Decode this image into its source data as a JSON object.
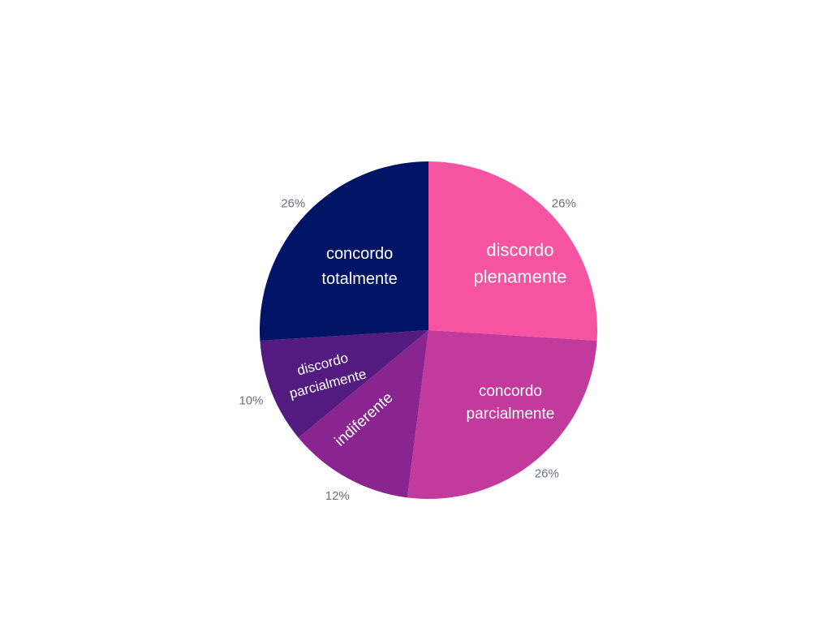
{
  "chart_data": {
    "type": "pie",
    "title": "",
    "start": "12 o'clock",
    "direction": "clockwise",
    "slices": [
      {
        "label": "discordo plenamente",
        "lines": [
          "discordo",
          "plenamente"
        ],
        "value": 26,
        "pct_text": "26%",
        "color": "#f654a3"
      },
      {
        "label": "concordo parcialmente",
        "lines": [
          "concordo",
          "parcialmente"
        ],
        "value": 26,
        "pct_text": "26%",
        "color": "#c13a9c"
      },
      {
        "label": "indiferente",
        "lines": [
          "indiferente"
        ],
        "value": 12,
        "pct_text": "12%",
        "color": "#8a2490"
      },
      {
        "label": "discordo parcialmente",
        "lines": [
          "discordo",
          "parcialmente"
        ],
        "value": 10,
        "pct_text": "10%",
        "color": "#531a80"
      },
      {
        "label": "concordo totalmente",
        "lines": [
          "concordo",
          "totalmente"
        ],
        "value": 26,
        "pct_text": "26%",
        "color": "#001466"
      }
    ]
  }
}
